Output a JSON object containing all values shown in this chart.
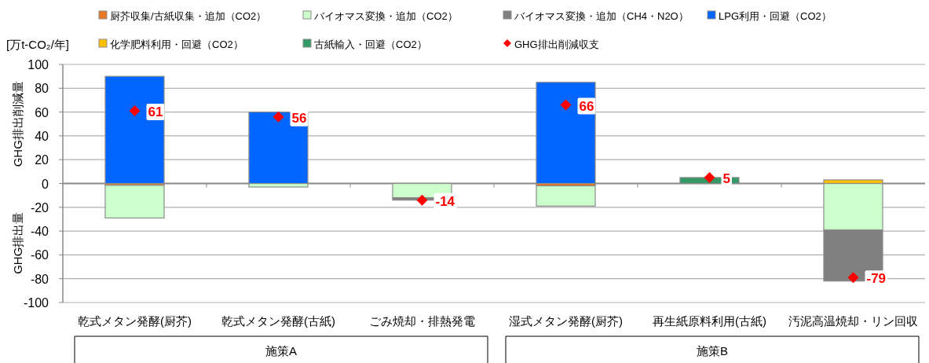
{
  "chart_data": {
    "type": "bar",
    "stacked": true,
    "ylabel": "GHG排出削減量",
    "categories": [
      "乾式メタン発酵(厨芥)",
      "乾式メタン発酵(古紙)",
      "ごみ焼却・排熱発電",
      "湿式メタン発酵(厨芥)",
      "再生紙原料利用(古紙)",
      "汚泥高温焼却・リン回収"
    ],
    "series": [
      {
        "name": "厨芥収集/古紙収集・追加（CO2）",
        "color": "#e87722",
        "values": [
          -1.5,
          null,
          null,
          -2,
          null,
          null
        ]
      },
      {
        "name": "バイオマス変換・追加（CO2）",
        "color": "#ccffcc",
        "values": [
          -27.5,
          -3,
          -12,
          -17,
          null,
          -39
        ]
      },
      {
        "name": "バイオマス変換・追加（CH4・N2O）",
        "color": "#808080",
        "values": [
          null,
          null,
          -2,
          null,
          null,
          -43
        ]
      },
      {
        "name": "LPG利用・回避（CO2）",
        "color": "#0066ff",
        "values": [
          90,
          60,
          null,
          85,
          null,
          null
        ]
      },
      {
        "name": "化学肥料利用・回避（CO2）",
        "color": "#ffc000",
        "values": [
          null,
          null,
          null,
          null,
          null,
          3
        ]
      },
      {
        "name": "古紙輸入・回避（CO2）",
        "color": "#339966",
        "values": [
          null,
          null,
          null,
          null,
          5,
          null
        ]
      },
      {
        "name": "GHG排出削減収支",
        "type": "scatter",
        "marker": "diamond",
        "color": "#ff0000",
        "values": [
          61,
          56,
          -14,
          66,
          5,
          -79
        ],
        "value_labels": [
          "61",
          "56",
          "-14",
          "66",
          "5",
          "-79"
        ]
      }
    ],
    "ylim": [
      -100,
      100
    ],
    "yticks": [
      -100,
      -80,
      -60,
      -40,
      -20,
      0,
      20,
      40,
      60,
      80,
      100
    ],
    "grid": "y",
    "legend": "top",
    "annotations": [
      "[万t-CO₂/年]",
      "GHG排出量",
      "施策A",
      "施策B"
    ]
  }
}
